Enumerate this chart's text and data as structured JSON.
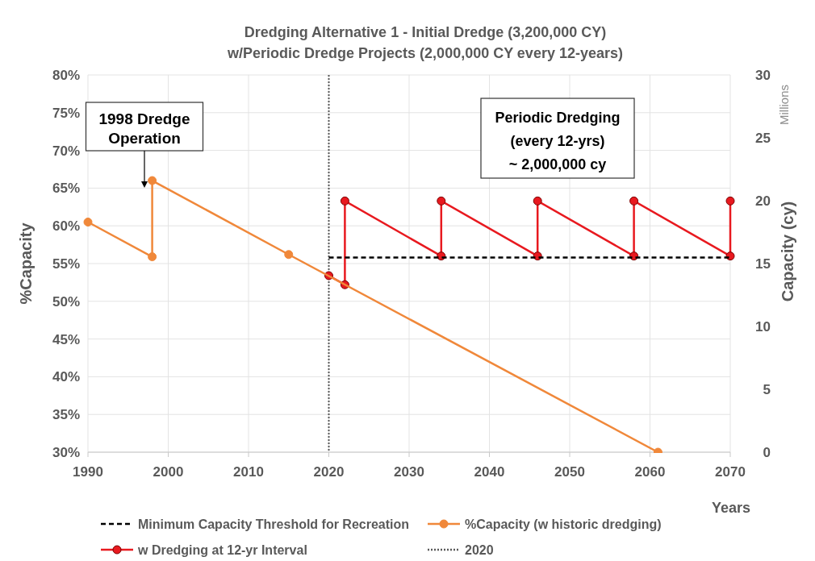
{
  "chart_data": {
    "type": "line",
    "title": "Dredging Alternative 1 - Initial Dredge (3,200,000 CY)",
    "subtitle": "w/Periodic Dredge Projects (2,000,000 CY every 12-years)",
    "xlabel": "Years",
    "ylabel": "%Capacity",
    "y2label": "Capacity (cy)",
    "xlim": [
      1990,
      2070
    ],
    "xticks": [
      1990,
      2000,
      2010,
      2020,
      2030,
      2040,
      2050,
      2060,
      2070
    ],
    "ylim": [
      30,
      80
    ],
    "yticks": [
      {
        "value": 30,
        "label": "30%"
      },
      {
        "value": 35,
        "label": "35%"
      },
      {
        "value": 40,
        "label": "40%"
      },
      {
        "value": 45,
        "label": "45%"
      },
      {
        "value": 50,
        "label": "50%"
      },
      {
        "value": 55,
        "label": "55%"
      },
      {
        "value": 60,
        "label": "60%"
      },
      {
        "value": 65,
        "label": "65%"
      },
      {
        "value": 70,
        "label": "70%"
      },
      {
        "value": 75,
        "label": "75%"
      },
      {
        "value": 80,
        "label": "80%"
      }
    ],
    "y2lim": [
      0,
      30
    ],
    "y2ticks": [
      0,
      5,
      10,
      15,
      20,
      25,
      30
    ],
    "grid": true,
    "legend": "bottom",
    "series": [
      {
        "name": "Minimum Capacity Threshold for Recreation",
        "color": "#000000",
        "line_style": "dashed",
        "marker": "none",
        "x": [
          2020,
          2070
        ],
        "values": [
          55.8,
          55.8
        ]
      },
      {
        "name": "%Capacity (w historic dredging)",
        "color": "#f0883a",
        "line_style": "solid",
        "marker": "circle",
        "x": [
          1990,
          1998,
          1998,
          2015,
          2061
        ],
        "values": [
          60.5,
          55.9,
          66,
          56.2,
          30
        ]
      },
      {
        "name": "w Dredging at 12-yr Interval",
        "color": "#e8191f",
        "line_style": "solid",
        "marker": "circle",
        "x": [
          2020,
          2022,
          2022,
          2034,
          2034,
          2046,
          2046,
          2058,
          2058,
          2070,
          2070
        ],
        "values": [
          53.4,
          52.2,
          63.3,
          56,
          63.3,
          56,
          63.3,
          56,
          63.3,
          56,
          63.3
        ]
      }
    ],
    "ref_lines": [
      {
        "axis": "x",
        "value": 2020,
        "label": "2020",
        "color": "#595959",
        "line_style": "dotted"
      }
    ],
    "annotations": [
      "1998 Dredge\nOperation",
      "Periodic Dredging\n(every 12-yrs)\n~ 2,000,000 cy",
      "Millions"
    ]
  }
}
